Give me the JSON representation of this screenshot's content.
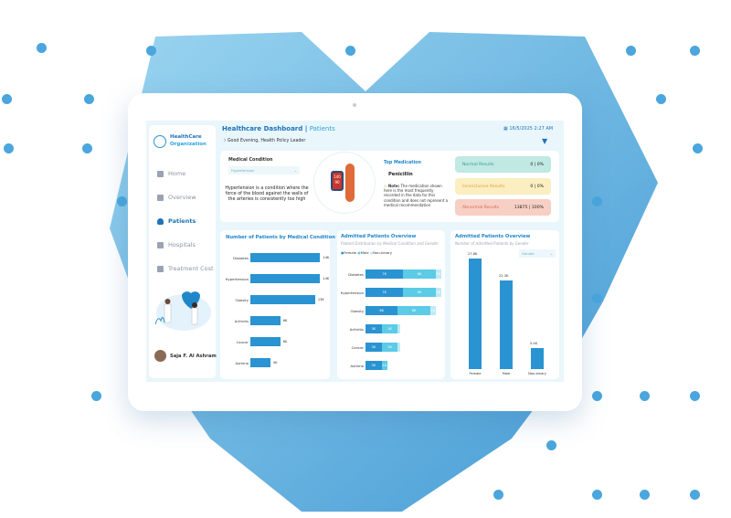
{
  "colors": {
    "primary": "#2a93d1",
    "male": "#5bcbe6",
    "nonbinary": "#bfeaf5",
    "normal": "#bfe9e2",
    "inconclusive": "#fbeec0",
    "abnormal": "#f8cfc4"
  },
  "sidebar": {
    "logo_line1": "HealthCare",
    "logo_line2": "Organization",
    "items": [
      {
        "label": "Home",
        "icon": "home-icon"
      },
      {
        "label": "Overview",
        "icon": "overview-icon"
      },
      {
        "label": "Patients",
        "icon": "user-icon",
        "active": true
      },
      {
        "label": "Hospitals",
        "icon": "hospital-icon"
      },
      {
        "label": "Treatment Cost",
        "icon": "receipt-icon"
      }
    ],
    "user_name": "Saja F. Al Ashram"
  },
  "header": {
    "title": "Healthcare Dashboard",
    "separator": " | ",
    "page": "Patients",
    "greeting": "Good Evening, Health Policy Leader",
    "datetime": "16/5/2025 2:27 AM"
  },
  "condition": {
    "label": "Medical Condition",
    "selected": "Hypertension",
    "description": "Hypertension is a condition where the force of the blood against the walls of the arteries is consistently too high",
    "monitor_top": "140",
    "monitor_bottom": "90"
  },
  "medication": {
    "label": "Top Medication",
    "name": "Penicillin",
    "note_label": "Note:",
    "note": "The medication shown here is the most frequently recorded in the data for this condition and does not represent a medical recommendation"
  },
  "results": [
    {
      "label": "Normal Results",
      "value": "0 | 0%"
    },
    {
      "label": "Inconclusive Results",
      "value": "0 | 0%"
    },
    {
      "label": "Abnormal Results",
      "value": "13875 | 100%"
    }
  ],
  "chart_data": [
    {
      "type": "bar",
      "orientation": "horizontal",
      "title": "Number of Patients by Medical Condition",
      "categories": [
        "Diabetes",
        "Hypertension",
        "Obesity",
        "Arthritis",
        "Cancer",
        "Asthma"
      ],
      "values": [
        14,
        14,
        13,
        6,
        6,
        4
      ],
      "labels": [
        "14K",
        "14K",
        "13K",
        "6K",
        "6K",
        "4K"
      ]
    },
    {
      "type": "bar",
      "orientation": "horizontal",
      "stacked": true,
      "title": "Admitted Patients Overview",
      "subtitle": "Patient Distribution by Medical Condition and Gender",
      "categories": [
        "Diabetes",
        "Hypertension",
        "Obesity",
        "Arthritis",
        "Cancer",
        "Asthma"
      ],
      "legend": "top-left",
      "series": [
        {
          "name": "Female",
          "values": [
            7,
            7,
            6,
            3,
            3,
            3
          ],
          "labels": [
            "7K",
            "7K",
            "6K",
            "3K",
            "3K",
            "3K"
          ]
        },
        {
          "name": "Male",
          "values": [
            6,
            6,
            6,
            3,
            3,
            1
          ],
          "labels": [
            "6K",
            "6K",
            "6K",
            "3K",
            "3K",
            "1K"
          ]
        },
        {
          "name": "Non-binary",
          "values": [
            1,
            1,
            1,
            0.4,
            0.4,
            0
          ],
          "labels": [
            "1K",
            "1K",
            "1K",
            "",
            "",
            ""
          ]
        }
      ]
    },
    {
      "type": "bar",
      "orientation": "vertical",
      "title": "Admitted Patients Overview",
      "subtitle": "Number of Admitted Patients by Gender",
      "dropdown": "Gender",
      "categories": [
        "Female",
        "Male",
        "Non-binary"
      ],
      "values": [
        27.8,
        22.3,
        5.4
      ],
      "labels": [
        "27.8K",
        "22.3K",
        "5.4K"
      ]
    }
  ]
}
